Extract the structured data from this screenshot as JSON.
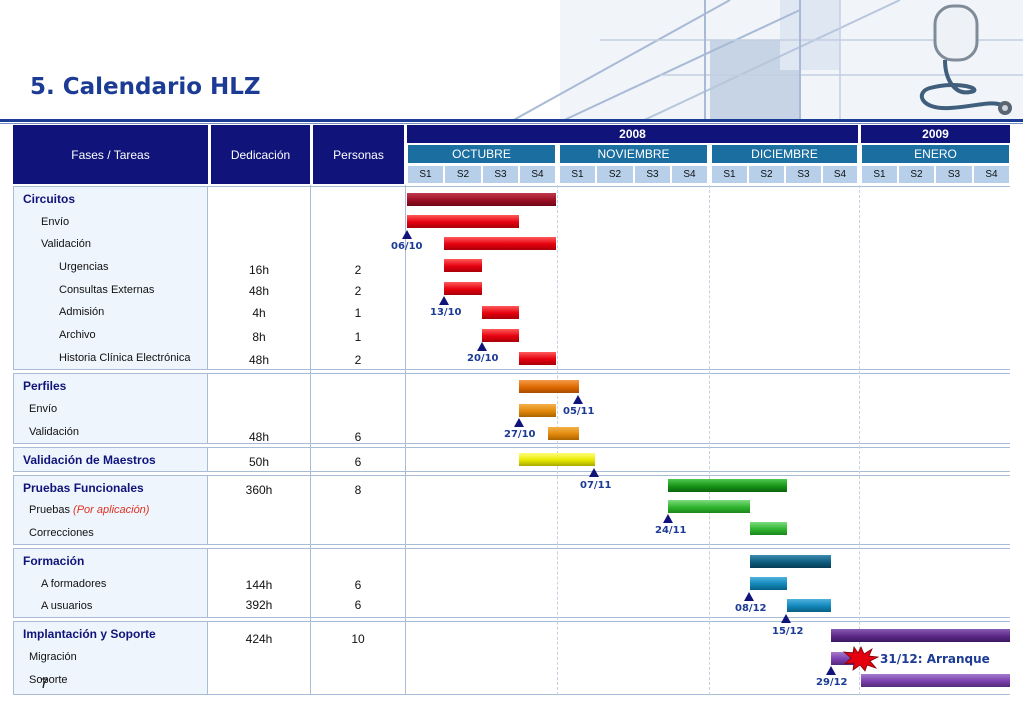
{
  "title": "5. Calendario HLZ",
  "header": {
    "fases": "Fases / Tareas",
    "dedicacion": "Dedicación",
    "personas": "Personas",
    "years": [
      "2008",
      "2009"
    ],
    "months": [
      "OCTUBRE",
      "NOVIEMBRE",
      "DICIEMBRE",
      "ENERO"
    ],
    "weeks": [
      "S1",
      "S2",
      "S3",
      "S4",
      "S1",
      "S2",
      "S3",
      "S4",
      "S1",
      "S2",
      "S3",
      "S4",
      "S1",
      "S2",
      "S3",
      "S4"
    ]
  },
  "groups": {
    "circuitos": {
      "title": "Circuitos",
      "envio": "Envío",
      "validacion": "Validación",
      "urgencias": "Urgencias",
      "consultas": "Consultas Externas",
      "admision": "Admisión",
      "archivo": "Archivo",
      "historia": "Historia Clínica Electrónica"
    },
    "perfiles": {
      "title": "Perfiles",
      "envio": "Envío",
      "validacion": "Validación"
    },
    "maestros": {
      "title": "Validación de Maestros"
    },
    "pruebas": {
      "title": "Pruebas Funcionales",
      "pruebas": "Pruebas",
      "por_aplicacion": "(Por aplicación)",
      "correcciones": "Correcciones"
    },
    "formacion": {
      "title": "Formación",
      "formadores": "A formadores",
      "usuarios": "A usuarios"
    },
    "implantacion": {
      "title": "Implantación y Soporte",
      "migracion": "Migración",
      "soporte": "Soporte"
    }
  },
  "values": {
    "urgencias_ded": "16h",
    "urgencias_per": "2",
    "consultas_ded": "48h",
    "consultas_per": "2",
    "admision_ded": "4h",
    "admision_per": "1",
    "archivo_ded": "8h",
    "archivo_per": "1",
    "historia_ded": "48h",
    "historia_per": "2",
    "perfiles_ded": "48h",
    "perfiles_per": "6",
    "maestros_ded": "50h",
    "maestros_per": "6",
    "pruebas_ded": "360h",
    "pruebas_per": "8",
    "formadores_ded": "144h",
    "formadores_per": "6",
    "usuarios_ded": "392h",
    "usuarios_per": "6",
    "implantacion_ded": "424h",
    "implantacion_per": "10"
  },
  "milestones": [
    "06/10",
    "13/10",
    "20/10",
    "05/11",
    "27/10",
    "07/11",
    "24/11",
    "08/12",
    "15/12",
    "29/12"
  ],
  "arranque": "31/12: Arranque",
  "page_number": "7",
  "colors": {
    "navy": "#10147a",
    "month_blue": "#1a6ea0",
    "week_blue": "#b7cfe9",
    "dark_red": "#9a0f24",
    "red": "#e5000f",
    "orange": "#e06a00",
    "orange_light": "#e2890c",
    "yellow": "#e8e800",
    "green_dark": "#179317",
    "green": "#2fb52f",
    "teal_dark": "#0d5c7d",
    "teal": "#1287ba",
    "purple_dark": "#5b2886",
    "purple": "#7b3fae"
  }
}
